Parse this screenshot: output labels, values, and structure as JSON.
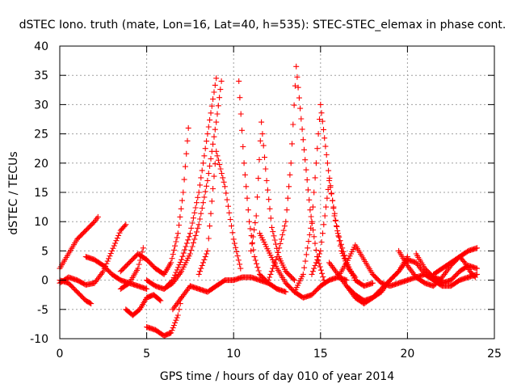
{
  "chart_data": {
    "type": "scatter",
    "title": "dSTEC Iono. truth (mate, Lon=16, Lat=40, h=535): STEC-STEC_elemax in phase cont.",
    "xlabel": "GPS time / hours of day 010 of year 2014",
    "ylabel": "dSTEC  / TECUs",
    "xlim": [
      0,
      25
    ],
    "ylim": [
      -10,
      40
    ],
    "xticks": [
      "0",
      "5",
      "10",
      "15",
      "20",
      "25"
    ],
    "yticks": [
      "-10",
      "-5",
      "0",
      "5",
      "10",
      "15",
      "20",
      "25",
      "30",
      "35",
      "40"
    ],
    "grid": true,
    "marker": "plus",
    "color": "#ff0000",
    "series": [
      {
        "x": [
          0.0,
          0.5,
          1.0,
          1.5,
          2.0,
          2.2
        ],
        "y": [
          2.0,
          4.5,
          7.0,
          8.5,
          10.0,
          10.8
        ]
      },
      {
        "x": [
          0.0,
          0.5,
          1.0,
          1.5,
          1.8
        ],
        "y": [
          0.0,
          -0.5,
          -2.0,
          -3.5,
          -4.0
        ]
      },
      {
        "x": [
          0.0,
          0.5,
          1.0,
          1.5,
          2.0,
          2.5,
          3.0,
          3.5,
          3.8
        ],
        "y": [
          -0.5,
          0.5,
          0.0,
          -0.8,
          -0.5,
          1.5,
          5.0,
          8.5,
          9.5
        ]
      },
      {
        "x": [
          1.5,
          2.0,
          2.5,
          3.0,
          3.5,
          4.0,
          4.5,
          5.0
        ],
        "y": [
          4.0,
          3.5,
          2.5,
          1.0,
          0.0,
          -0.5,
          -1.0,
          -1.5
        ]
      },
      {
        "x": [
          3.5,
          4.0,
          4.5,
          4.8
        ],
        "y": [
          -1.5,
          -0.5,
          2.0,
          5.5
        ]
      },
      {
        "x": [
          3.8,
          4.2,
          4.6,
          5.0,
          5.4,
          5.8
        ],
        "y": [
          -5.0,
          -6.0,
          -5.0,
          -3.0,
          -2.5,
          -3.5
        ]
      },
      {
        "x": [
          5.0,
          5.5,
          6.0,
          6.4,
          6.8,
          7.0
        ],
        "y": [
          -8.0,
          -8.5,
          -9.5,
          -9.0,
          -6.0,
          -3.0
        ]
      },
      {
        "x": [
          3.5,
          4.0,
          4.5,
          5.0,
          5.5,
          6.0,
          6.4,
          6.8,
          7.1,
          7.4
        ],
        "y": [
          1.5,
          3.0,
          4.5,
          3.5,
          2.0,
          1.0,
          3.0,
          8.0,
          15.0,
          26.0
        ]
      },
      {
        "x": [
          5.0,
          5.5,
          6.0,
          6.5,
          7.0,
          7.5,
          8.0,
          8.5,
          9.0
        ],
        "y": [
          0.0,
          -1.0,
          -1.5,
          0.0,
          3.5,
          8.0,
          15.0,
          25.0,
          34.5
        ]
      },
      {
        "x": [
          6.0,
          6.5,
          7.0,
          7.5,
          8.0,
          8.5,
          9.0,
          9.3
        ],
        "y": [
          -1.5,
          -0.5,
          1.5,
          4.5,
          9.5,
          17.0,
          27.0,
          34.0
        ]
      },
      {
        "x": [
          8.0,
          8.5,
          9.0,
          9.5,
          10.0,
          10.4
        ],
        "y": [
          1.0,
          5.0,
          22.0,
          16.0,
          7.0,
          2.0
        ]
      },
      {
        "x": [
          6.5,
          7.0,
          7.5,
          8.0,
          8.5,
          9.0,
          9.5,
          10.0,
          10.5,
          11.0,
          11.5,
          12.0
        ],
        "y": [
          -5.0,
          -3.0,
          -1.0,
          -1.5,
          -2.0,
          -1.0,
          0.0,
          0.0,
          0.5,
          0.5,
          0.0,
          -0.5
        ]
      },
      {
        "x": [
          10.3,
          10.6,
          10.9,
          11.2,
          11.5,
          12.0,
          12.5,
          13.0
        ],
        "y": [
          34.0,
          20.0,
          10.0,
          4.0,
          1.0,
          -0.5,
          -1.5,
          -2.0
        ]
      },
      {
        "x": [
          11.0,
          11.3,
          11.6,
          11.9,
          12.2,
          12.6,
          13.0,
          13.5
        ],
        "y": [
          5.0,
          11.0,
          27.0,
          17.0,
          9.0,
          4.0,
          1.5,
          0.0
        ]
      },
      {
        "x": [
          12.0,
          12.5,
          13.0,
          13.3,
          13.6,
          14.0,
          14.4,
          14.8,
          15.2
        ],
        "y": [
          0.0,
          4.0,
          10.0,
          20.0,
          36.5,
          24.0,
          12.0,
          4.0,
          0.0
        ]
      },
      {
        "x": [
          13.5,
          14.0,
          14.5,
          15.0,
          15.4,
          15.8,
          16.2,
          16.6,
          17.0
        ],
        "y": [
          -2.0,
          1.0,
          10.0,
          30.0,
          20.0,
          11.0,
          5.0,
          2.0,
          0.5
        ]
      },
      {
        "x": [
          11.5,
          12.0,
          12.5,
          13.0,
          13.5,
          14.0,
          14.5,
          15.0,
          15.5,
          16.0,
          16.5
        ],
        "y": [
          8.0,
          5.0,
          2.0,
          -0.5,
          -2.0,
          -3.0,
          -2.5,
          -1.0,
          0.0,
          0.5,
          0.0
        ]
      },
      {
        "x": [
          14.5,
          15.0,
          15.5,
          16.0,
          16.5,
          17.0,
          17.5,
          18.0
        ],
        "y": [
          1.0,
          5.0,
          17.0,
          8.0,
          3.0,
          0.0,
          -1.0,
          -0.5
        ]
      },
      {
        "x": [
          15.5,
          16.0,
          16.5,
          17.0,
          17.5,
          18.0,
          18.5,
          19.0,
          19.5,
          20.0
        ],
        "y": [
          3.0,
          1.0,
          -1.0,
          -2.5,
          -3.5,
          -3.0,
          -2.0,
          0.0,
          1.5,
          4.0
        ]
      },
      {
        "x": [
          16.0,
          16.5,
          17.0,
          17.5,
          18.0,
          18.5,
          19.0,
          19.5,
          20.0,
          20.5,
          21.0,
          21.5,
          22.0
        ],
        "y": [
          0.5,
          3.0,
          6.0,
          3.5,
          1.0,
          -0.5,
          -1.0,
          -0.5,
          0.0,
          0.5,
          1.0,
          0.5,
          0.0
        ]
      },
      {
        "x": [
          16.5,
          17.0,
          17.5,
          18.0,
          18.5,
          19.0,
          19.5,
          20.0,
          20.5,
          21.0,
          21.5,
          22.0,
          22.5,
          23.0,
          23.5,
          24.0
        ],
        "y": [
          -1.0,
          -3.0,
          -4.0,
          -3.0,
          -1.5,
          0.0,
          1.5,
          3.5,
          3.0,
          1.0,
          0.0,
          -1.0,
          -1.0,
          0.0,
          0.5,
          1.0
        ]
      },
      {
        "x": [
          19.5,
          20.0,
          20.5,
          21.0,
          21.5,
          22.0,
          22.5,
          23.0,
          23.5,
          24.0
        ],
        "y": [
          5.0,
          2.5,
          0.5,
          -0.5,
          -1.0,
          0.5,
          2.5,
          4.0,
          5.0,
          5.5
        ]
      },
      {
        "x": [
          20.5,
          21.0,
          21.5,
          22.0,
          22.5,
          23.0,
          23.5,
          24.0
        ],
        "y": [
          4.5,
          2.0,
          0.5,
          -0.5,
          0.0,
          1.5,
          2.5,
          2.0
        ]
      },
      {
        "x": [
          21.5,
          22.0,
          22.5,
          23.0,
          23.3,
          23.6,
          23.9
        ],
        "y": [
          1.0,
          2.0,
          3.0,
          4.0,
          3.0,
          1.5,
          0.5
        ]
      }
    ]
  }
}
